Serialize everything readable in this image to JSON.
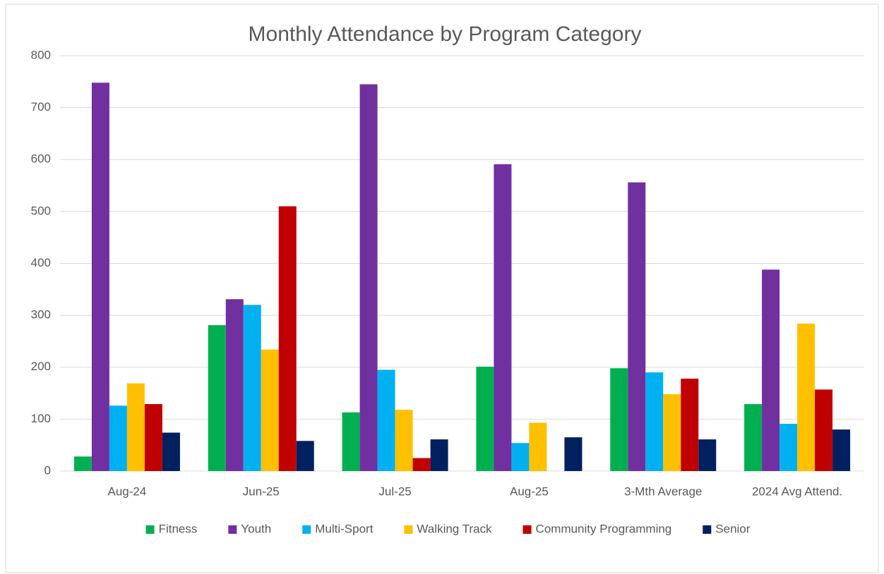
{
  "chart_data": {
    "type": "bar",
    "title": "Monthly Attendance by Program Category",
    "categories": [
      "Aug-24",
      "Jun-25",
      "Jul-25",
      "Aug-25",
      "3-Mth Average",
      "2024 Avg Attend."
    ],
    "series": [
      {
        "name": "Fitness",
        "color": "#00b050",
        "values": [
          28,
          281,
          113,
          201,
          198,
          129
        ]
      },
      {
        "name": "Youth",
        "color": "#7030a0",
        "values": [
          748,
          331,
          745,
          591,
          556,
          388
        ]
      },
      {
        "name": "Multi-Sport",
        "color": "#00b0f0",
        "values": [
          126,
          320,
          195,
          54,
          190,
          91
        ]
      },
      {
        "name": "Walking Track",
        "color": "#ffc000",
        "values": [
          169,
          234,
          118,
          93,
          148,
          284
        ]
      },
      {
        "name": "Community Programming",
        "color": "#c00000",
        "values": [
          129,
          510,
          25,
          0,
          178,
          157
        ]
      },
      {
        "name": "Senior",
        "color": "#002060",
        "values": [
          74,
          58,
          61,
          65,
          61,
          80
        ]
      }
    ],
    "ylim": [
      0,
      800
    ],
    "yticks": [
      0,
      100,
      200,
      300,
      400,
      500,
      600,
      700,
      800
    ],
    "grid": true,
    "legend": "bottom"
  }
}
